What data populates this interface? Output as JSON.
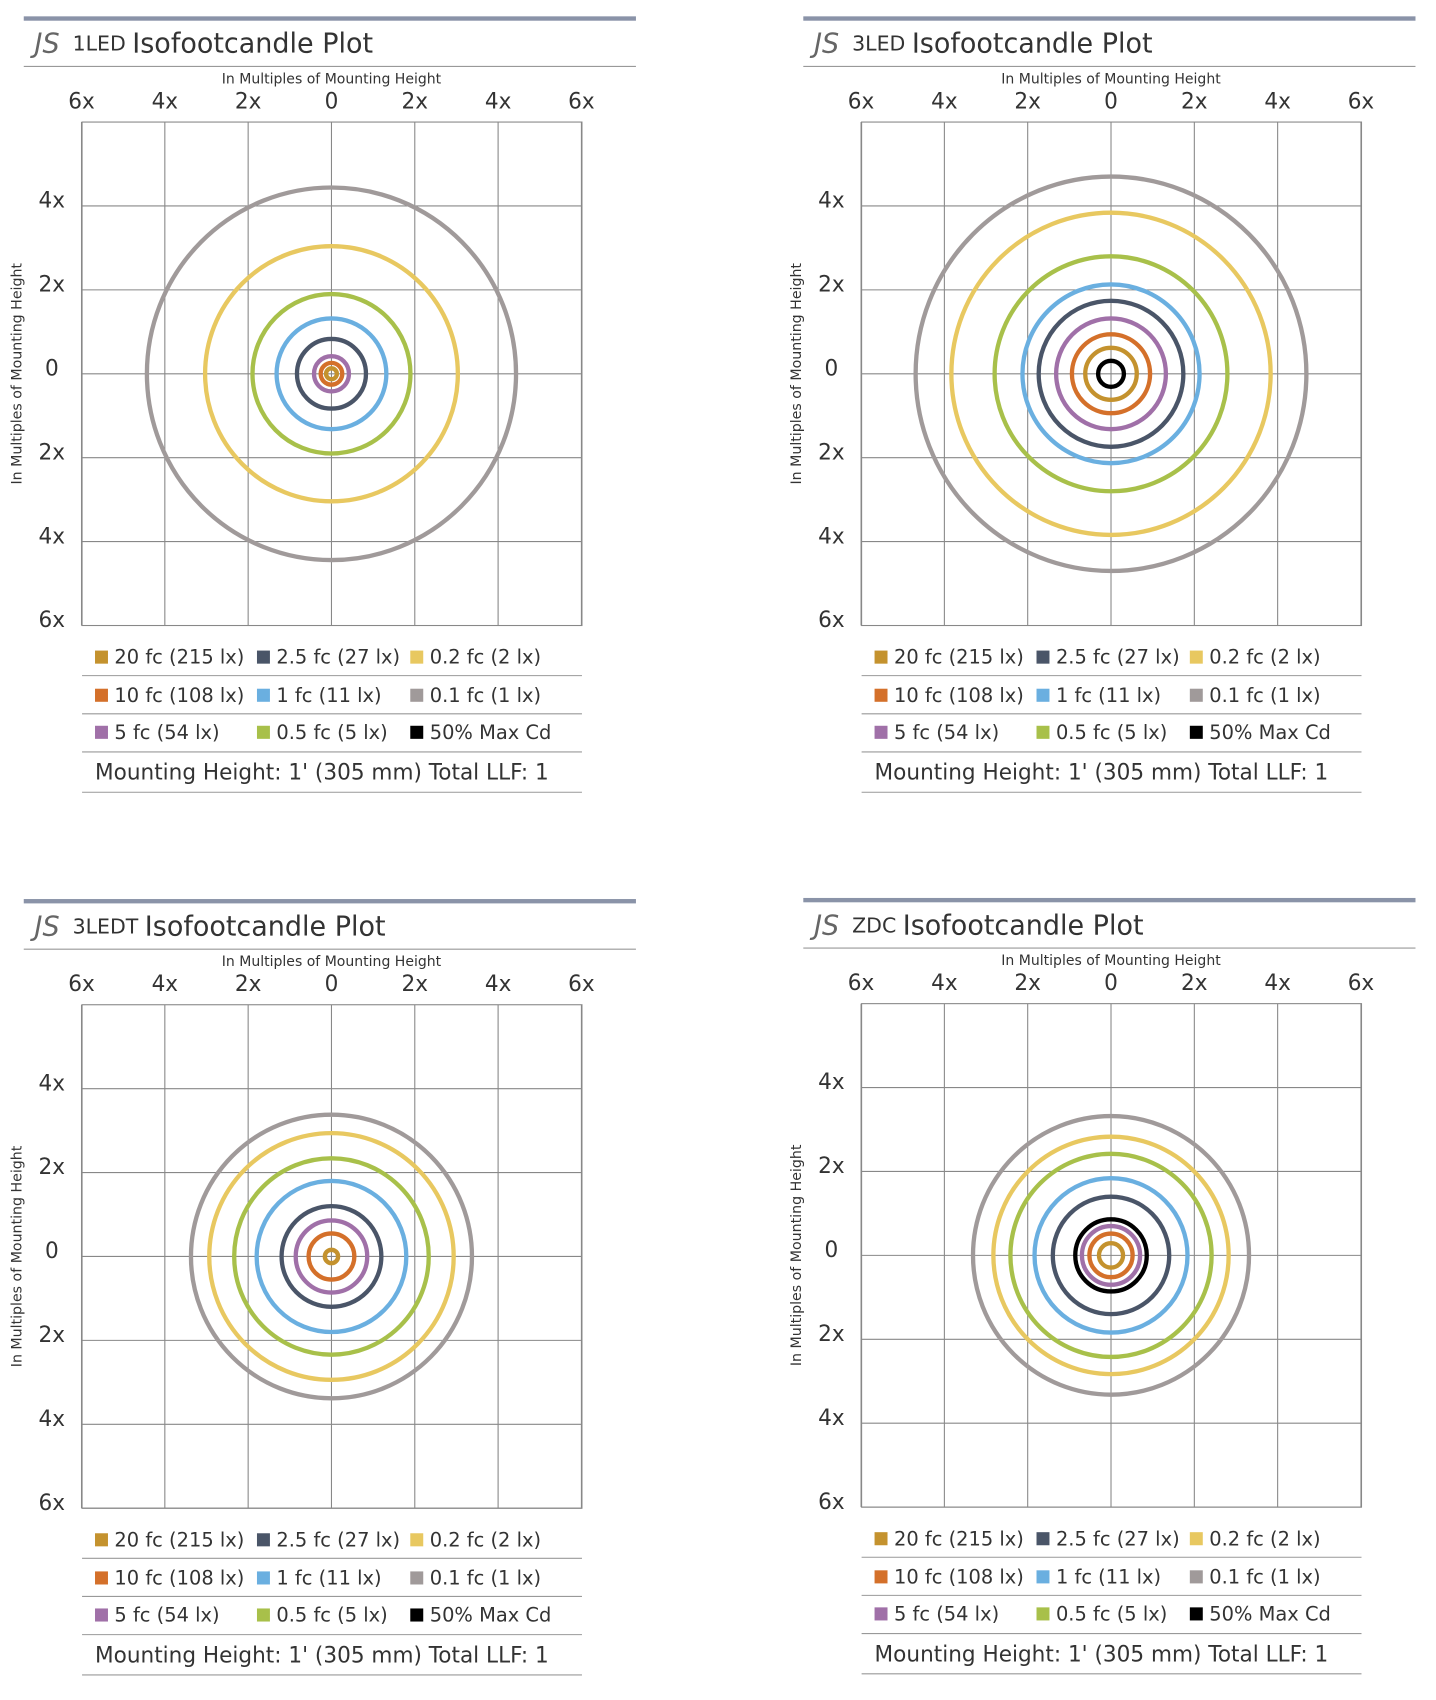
{
  "axes": {
    "x_title": "In Multiples of Mounting Height",
    "y_title": "In Multiples of Mounting Height",
    "xlim": [
      -6,
      6
    ],
    "ylim": [
      -6,
      6
    ],
    "xticks": [
      {
        "value": -6,
        "label": "6x"
      },
      {
        "value": -4,
        "label": "4x"
      },
      {
        "value": -2,
        "label": "2x"
      },
      0,
      {
        "value": 2,
        "label": "2x"
      },
      {
        "value": 4,
        "label": "4x"
      },
      {
        "value": 6,
        "label": "6x"
      }
    ],
    "yticks": [
      {
        "value": 4,
        "label": "4x"
      },
      {
        "value": 2,
        "label": "2x"
      },
      0,
      {
        "value": -2,
        "label": "2x"
      },
      {
        "value": -4,
        "label": "4x"
      },
      {
        "value": -6,
        "label": "6x"
      }
    ]
  },
  "legend": [
    {
      "label": "20 fc (215 lx)",
      "color": "#c4922e"
    },
    {
      "label": "10 fc (108 lx)",
      "color": "#d4702a"
    },
    {
      "label": "5 fc (54 lx)",
      "color": "#a070a8"
    },
    {
      "label": "2.5 fc (27 lx)",
      "color": "#4a5568"
    },
    {
      "label": "1 fc (11 lx)",
      "color": "#6aafe0"
    },
    {
      "label": "0.5 fc (5 lx)",
      "color": "#a8c04a"
    },
    {
      "label": "0.2 fc (2 lx)",
      "color": "#e8c860"
    },
    {
      "label": "0.1 fc (1 lx)",
      "color": "#a09a9a"
    },
    {
      "label": "50% Max Cd",
      "color": "#000000"
    }
  ],
  "panels": [
    {
      "brand": "JS",
      "model": "1LED",
      "title": "Isofootcandle Plot",
      "footer": "Mounting Height: 1' (305 mm)  Total LLF: 1",
      "radii": [
        0.13,
        0.26,
        0.42,
        0.83,
        1.32,
        1.9,
        3.04,
        4.44,
        null
      ]
    },
    {
      "brand": "JS",
      "model": "3LED",
      "title": "Isofootcandle Plot",
      "footer": "Mounting Height: 1' (305 mm)  Total LLF: 1",
      "radii": [
        0.62,
        0.94,
        1.32,
        1.74,
        2.13,
        2.8,
        3.84,
        4.7,
        0.31
      ]
    },
    {
      "brand": "JS",
      "model": "3LEDT",
      "title": "Isofootcandle Plot",
      "footer": "Mounting Height: 1' (305 mm)  Total LLF: 1",
      "radii": [
        0.16,
        0.55,
        0.86,
        1.2,
        1.8,
        2.34,
        2.94,
        3.38,
        null
      ]
    },
    {
      "brand": "JS",
      "model": "ZDC",
      "title": "Isofootcandle Plot",
      "footer": "Mounting Height: 1' (305 mm)  Total LLF: 1",
      "radii": [
        0.29,
        0.52,
        0.7,
        1.4,
        1.84,
        2.42,
        2.83,
        3.32,
        0.86
      ]
    }
  ]
}
